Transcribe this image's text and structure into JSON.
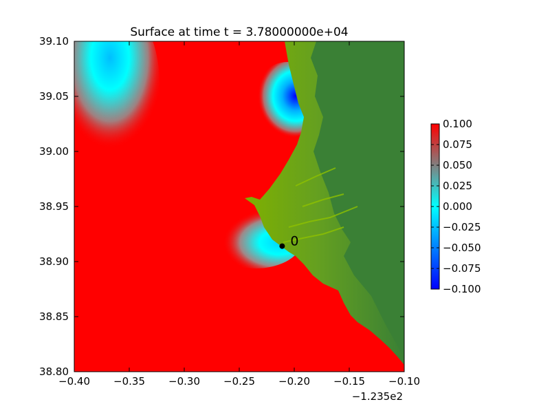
{
  "chart_data": {
    "type": "heatmap",
    "title": "Surface at time t = 3.78000000e+04",
    "x_offset_label": "−1.235e2",
    "xlim": [
      -0.4,
      -0.1
    ],
    "ylim": [
      38.8,
      39.1
    ],
    "x_ticks": [
      -0.4,
      -0.35,
      -0.3,
      -0.25,
      -0.2,
      -0.15,
      -0.1
    ],
    "x_tick_labels": [
      "−0.40",
      "−0.35",
      "−0.30",
      "−0.25",
      "−0.20",
      "−0.15",
      "−0.10"
    ],
    "y_ticks": [
      38.8,
      38.85,
      38.9,
      38.95,
      39.0,
      39.05,
      39.1
    ],
    "y_tick_labels": [
      "38.80",
      "38.85",
      "38.90",
      "38.95",
      "39.00",
      "39.05",
      "39.10"
    ],
    "colorbar": {
      "range": [
        -0.1,
        0.1
      ],
      "ticks": [
        0.1,
        0.075,
        0.05,
        0.025,
        0.0,
        -0.025,
        -0.05,
        -0.075,
        -0.1
      ],
      "tick_labels": [
        "0.100",
        "0.075",
        "0.050",
        "0.025",
        "0.000",
        "−0.025",
        "−0.050",
        "−0.075",
        "−0.100"
      ],
      "colors": [
        "#0000ff",
        "#00ffff",
        "#808080",
        "#ff0000"
      ]
    },
    "gauge": {
      "label": "0",
      "x": -0.211,
      "y": 38.914
    },
    "colors": {
      "water_high": "#ff0000",
      "land_low": "#7fb000",
      "land_high": "#3a8035"
    },
    "grid": false
  }
}
